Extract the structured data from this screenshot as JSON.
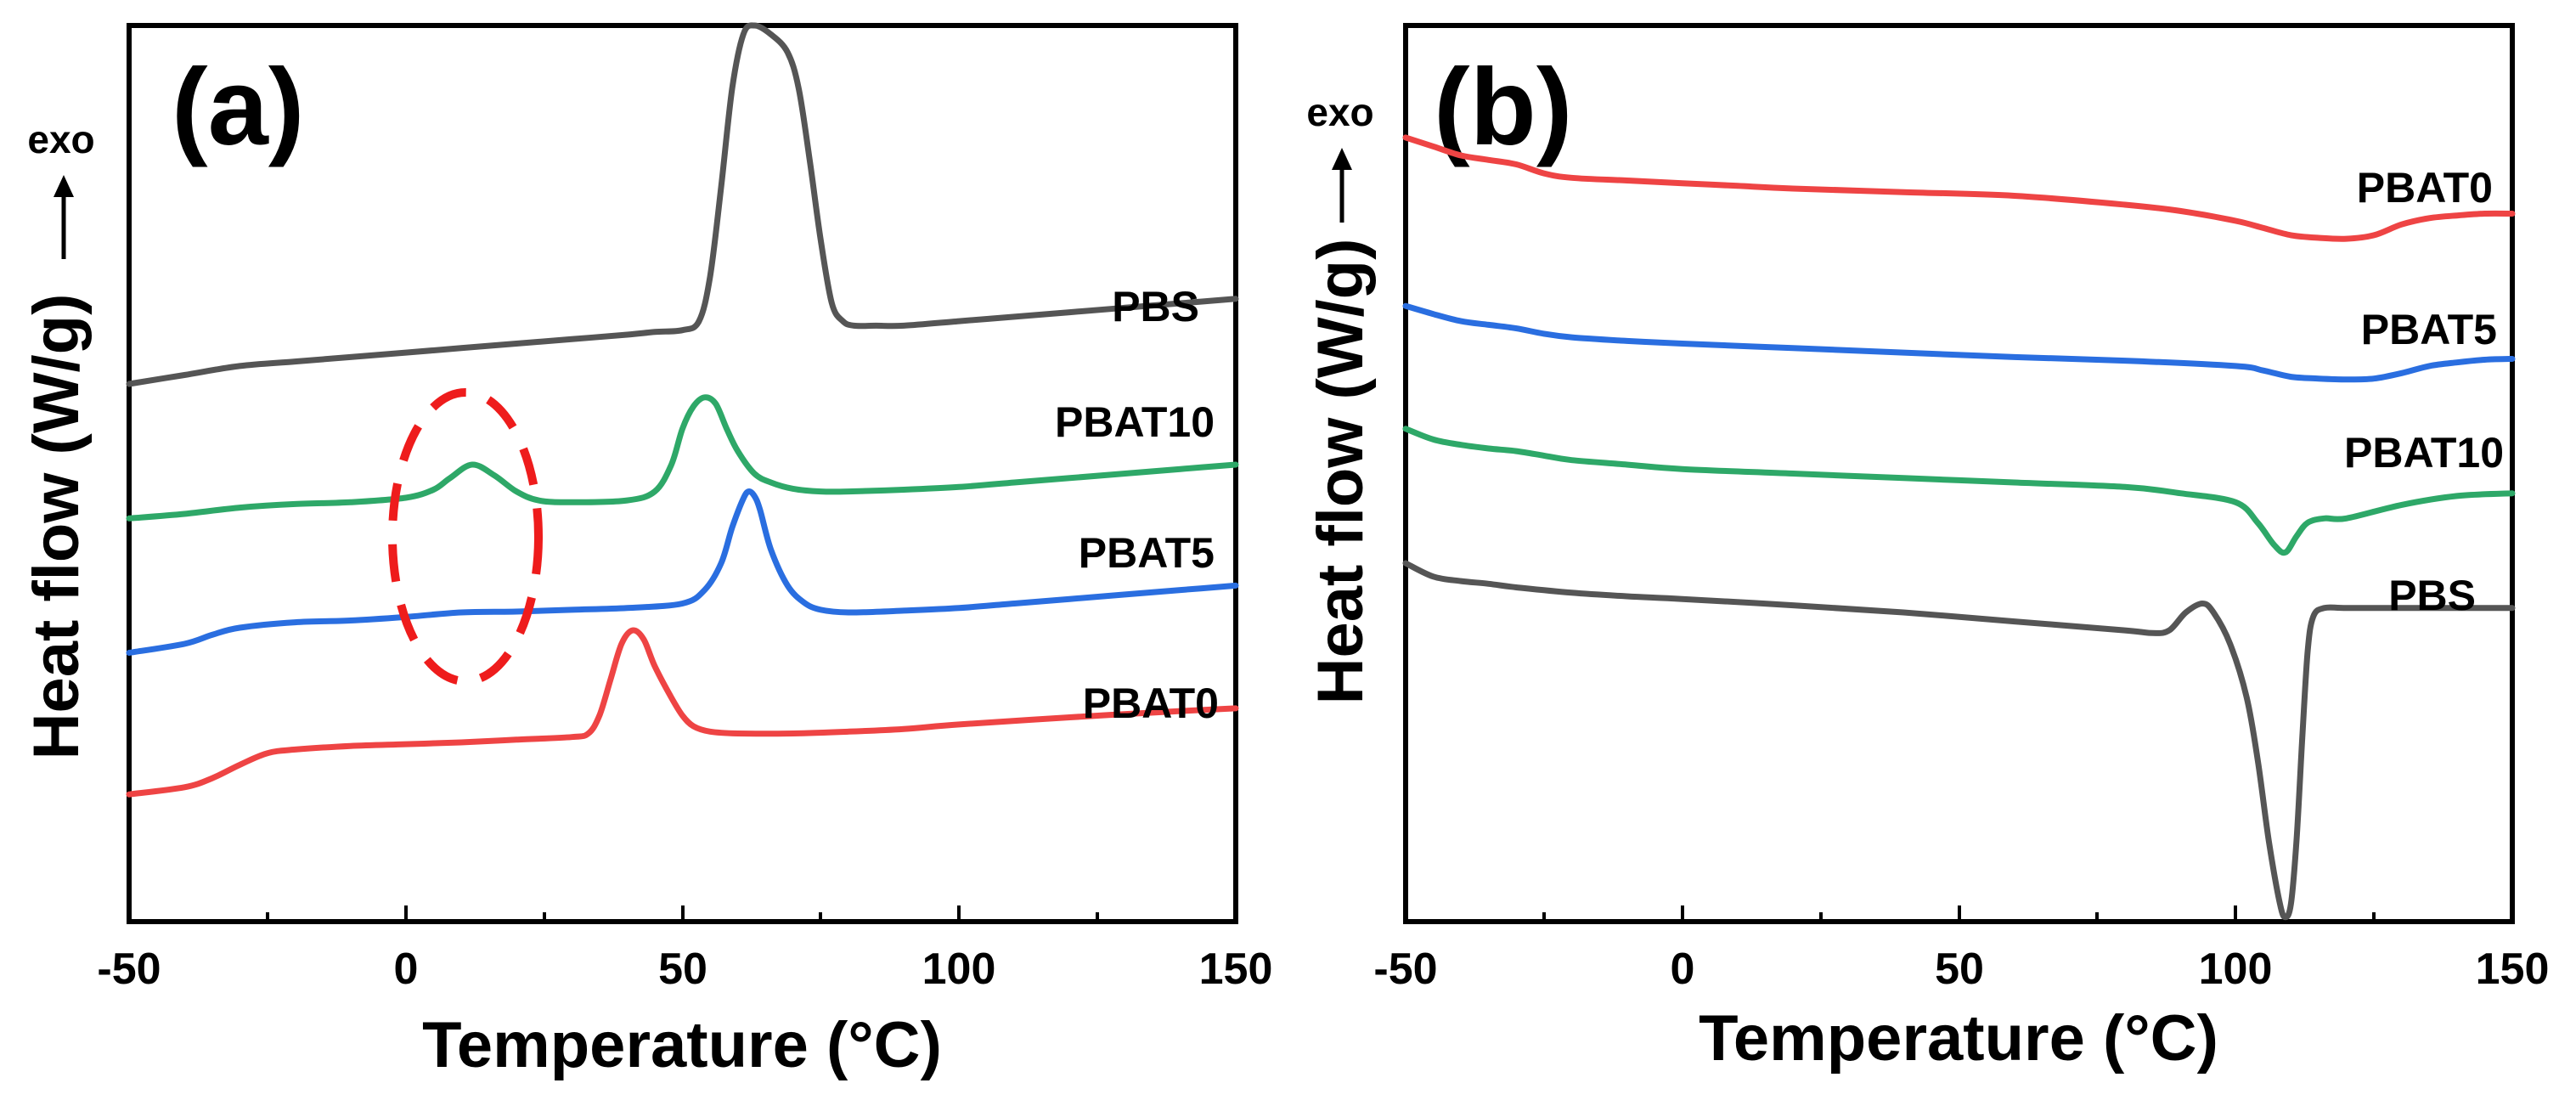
{
  "chart_data": [
    {
      "type": "line",
      "panel_label": "(a)",
      "title": "",
      "xlabel": "Temperature (°C)",
      "ylabel": "Heat flow (W/g)",
      "ylabel_arrow_text": "exo",
      "xlim": [
        -50,
        150
      ],
      "ylim": [
        0,
        10
      ],
      "xticks": [
        -50,
        0,
        50,
        100,
        150
      ],
      "xtick_labels": [
        "-50",
        "0",
        "50",
        "100",
        "150"
      ],
      "y_tick_labels_shown": false,
      "grid": false,
      "legend": "inline labels at right end of each curve",
      "annotation": "red dashed ellipse around the small exothermic peak near 10 °C",
      "series": [
        {
          "name": "PBS",
          "label": "PBS",
          "color": "#555555",
          "x": [
            -50,
            -40,
            -30,
            -20,
            -10,
            0,
            10,
            20,
            30,
            40,
            45,
            50,
            53,
            55,
            57,
            59,
            61,
            63,
            66,
            69,
            71,
            73,
            75,
            77,
            79,
            81,
            85,
            90,
            100,
            110,
            120,
            130,
            140,
            150
          ],
          "y": [
            6.0,
            6.1,
            6.2,
            6.25,
            6.3,
            6.35,
            6.4,
            6.45,
            6.5,
            6.55,
            6.58,
            6.6,
            6.7,
            7.2,
            8.2,
            9.3,
            9.9,
            10.0,
            9.9,
            9.7,
            9.3,
            8.5,
            7.6,
            6.9,
            6.7,
            6.65,
            6.65,
            6.65,
            6.7,
            6.75,
            6.8,
            6.85,
            6.9,
            6.95
          ]
        },
        {
          "name": "PBAT10",
          "label": "PBAT10",
          "color": "#2ea868",
          "x": [
            -50,
            -40,
            -30,
            -20,
            -10,
            0,
            5,
            8,
            12,
            16,
            20,
            24,
            30,
            40,
            45,
            48,
            50,
            52,
            54,
            56,
            58,
            60,
            63,
            66,
            70,
            75,
            80,
            90,
            100,
            110,
            120,
            130,
            140,
            150
          ],
          "y": [
            4.5,
            4.55,
            4.62,
            4.66,
            4.68,
            4.73,
            4.82,
            4.95,
            5.1,
            4.98,
            4.8,
            4.7,
            4.68,
            4.7,
            4.8,
            5.1,
            5.5,
            5.75,
            5.85,
            5.78,
            5.5,
            5.25,
            5.0,
            4.9,
            4.83,
            4.8,
            4.8,
            4.82,
            4.85,
            4.9,
            4.95,
            5.0,
            5.05,
            5.1
          ]
        },
        {
          "name": "PBAT5",
          "label": "PBAT5",
          "color": "#2a6ee0",
          "x": [
            -50,
            -40,
            -35,
            -30,
            -20,
            -10,
            0,
            10,
            20,
            30,
            40,
            50,
            54,
            57,
            59,
            61,
            62,
            63,
            64,
            66,
            69,
            72,
            75,
            80,
            90,
            100,
            110,
            120,
            130,
            140,
            150
          ],
          "y": [
            3.0,
            3.1,
            3.2,
            3.28,
            3.34,
            3.36,
            3.4,
            3.45,
            3.46,
            3.48,
            3.5,
            3.55,
            3.7,
            4.0,
            4.4,
            4.72,
            4.8,
            4.75,
            4.6,
            4.15,
            3.75,
            3.56,
            3.48,
            3.45,
            3.47,
            3.5,
            3.55,
            3.6,
            3.65,
            3.7,
            3.75
          ]
        },
        {
          "name": "PBAT0",
          "label": "PBAT0",
          "color": "#ee4444",
          "x": [
            -50,
            -40,
            -35,
            -30,
            -25,
            -20,
            -10,
            0,
            10,
            20,
            30,
            33,
            35,
            37,
            39,
            41,
            43,
            45,
            48,
            50,
            52,
            55,
            60,
            70,
            80,
            90,
            100,
            120,
            140,
            150
          ],
          "y": [
            1.42,
            1.5,
            1.6,
            1.75,
            1.88,
            1.92,
            1.96,
            1.98,
            2.0,
            2.03,
            2.06,
            2.1,
            2.3,
            2.7,
            3.1,
            3.25,
            3.15,
            2.85,
            2.5,
            2.3,
            2.18,
            2.12,
            2.1,
            2.1,
            2.12,
            2.15,
            2.2,
            2.28,
            2.35,
            2.38
          ]
        }
      ]
    },
    {
      "type": "line",
      "panel_label": "(b)",
      "title": "",
      "xlabel": "Temperature (°C)",
      "ylabel": "Heat flow (W/g)",
      "ylabel_arrow_text": "exo",
      "xlim": [
        -50,
        150
      ],
      "ylim": [
        0,
        10
      ],
      "xticks": [
        -50,
        0,
        50,
        100,
        150
      ],
      "xtick_labels": [
        "-50",
        "0",
        "50",
        "100",
        "150"
      ],
      "y_tick_labels_shown": false,
      "grid": false,
      "legend": "inline labels at right end of each curve",
      "series": [
        {
          "name": "PBAT0",
          "label": "PBAT0",
          "color": "#ee4444",
          "x": [
            -50,
            -45,
            -40,
            -35,
            -30,
            -25,
            -20,
            -10,
            0,
            10,
            20,
            40,
            60,
            80,
            90,
            100,
            105,
            110,
            115,
            120,
            125,
            130,
            135,
            140,
            145,
            150
          ],
          "y": [
            8.75,
            8.65,
            8.55,
            8.5,
            8.45,
            8.35,
            8.3,
            8.27,
            8.24,
            8.21,
            8.18,
            8.14,
            8.1,
            8.0,
            7.93,
            7.82,
            7.74,
            7.66,
            7.63,
            7.62,
            7.66,
            7.78,
            7.85,
            7.88,
            7.9,
            7.9
          ]
        },
        {
          "name": "PBAT5",
          "label": "PBAT5",
          "color": "#2a6ee0",
          "x": [
            -50,
            -45,
            -40,
            -35,
            -30,
            -25,
            -20,
            -10,
            0,
            20,
            40,
            60,
            80,
            100,
            105,
            110,
            115,
            120,
            125,
            130,
            135,
            140,
            145,
            150
          ],
          "y": [
            6.87,
            6.78,
            6.7,
            6.66,
            6.62,
            6.56,
            6.52,
            6.48,
            6.45,
            6.4,
            6.35,
            6.3,
            6.26,
            6.2,
            6.15,
            6.08,
            6.06,
            6.05,
            6.06,
            6.12,
            6.2,
            6.24,
            6.27,
            6.28
          ]
        },
        {
          "name": "PBAT10",
          "label": "PBAT10",
          "color": "#2ea868",
          "x": [
            -50,
            -45,
            -40,
            -35,
            -30,
            -25,
            -20,
            -10,
            0,
            20,
            40,
            60,
            80,
            90,
            100,
            104,
            107,
            109,
            111,
            113,
            116,
            120,
            130,
            140,
            150
          ],
          "y": [
            5.5,
            5.38,
            5.32,
            5.28,
            5.25,
            5.2,
            5.15,
            5.1,
            5.05,
            5.0,
            4.95,
            4.9,
            4.85,
            4.78,
            4.68,
            4.45,
            4.2,
            4.12,
            4.3,
            4.45,
            4.5,
            4.5,
            4.65,
            4.75,
            4.78
          ]
        },
        {
          "name": "PBS",
          "label": "PBS",
          "color": "#555555",
          "x": [
            -50,
            -45,
            -40,
            -35,
            -30,
            -20,
            -10,
            0,
            20,
            40,
            60,
            80,
            85,
            88,
            91,
            94,
            96,
            99,
            102,
            104,
            106,
            108,
            109,
            110,
            111,
            112,
            113,
            114,
            116,
            120,
            130,
            140,
            150
          ],
          "y": [
            4.0,
            3.85,
            3.8,
            3.77,
            3.73,
            3.67,
            3.63,
            3.6,
            3.53,
            3.45,
            3.35,
            3.25,
            3.22,
            3.25,
            3.45,
            3.55,
            3.45,
            3.1,
            2.5,
            1.8,
            0.9,
            0.2,
            0.05,
            0.2,
            0.9,
            2.0,
            3.0,
            3.4,
            3.5,
            3.5,
            3.5,
            3.5,
            3.5
          ]
        }
      ]
    }
  ]
}
